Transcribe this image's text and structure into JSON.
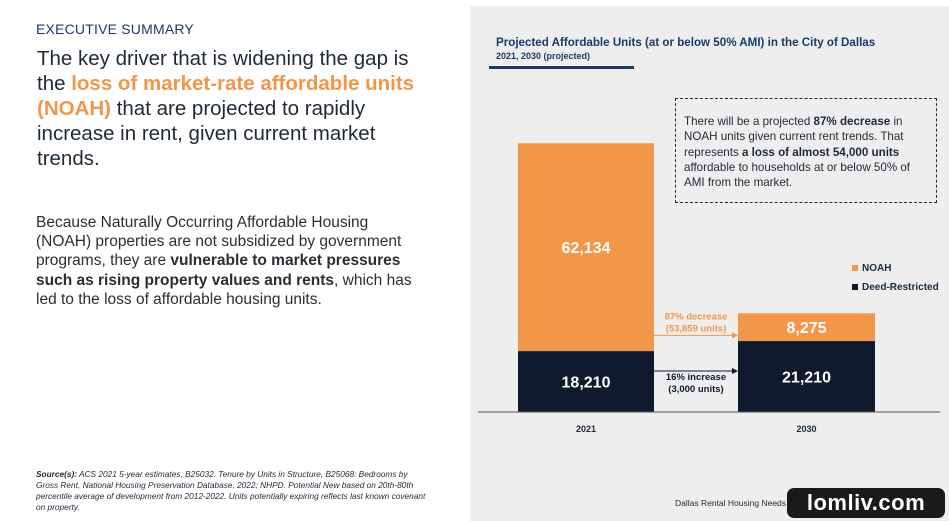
{
  "left": {
    "eyebrow": "EXECUTIVE SUMMARY",
    "headline_a": "The key driver that is widening the gap is the ",
    "headline_highlight": "loss of market-rate affordable units (NOAH)",
    "headline_b": " that are projected to rapidly increase in rent, given current market trends.",
    "body_a": "Because Naturally Occurring Affordable Housing (NOAH) properties are not subsidized by government programs, they are ",
    "body_bold": "vulnerable to market pressures such as rising property values and rents",
    "body_b": ", which has led to the loss of affordable housing units.",
    "source_label": "Source(s):",
    "source_text": " ACS 2021 5-year estimates, B25032. Tenure by Units in Structure, B25068: Bedrooms by Gross Rent, National Housing Preservation Database, 2022; NHPD. Potential New based on 20th-80th percentile average of development from 2012-2022. Units potentially expiring reflects last known covenant on property."
  },
  "chart_data": {
    "type": "bar",
    "stacked": true,
    "title": "Projected Affordable Units (at or below 50% AMI) in the City of Dallas",
    "subtitle": "2021, 2030 (projected)",
    "categories": [
      "2021",
      "2030"
    ],
    "series": [
      {
        "name": "Deed-Restricted",
        "values": [
          18210,
          21210
        ],
        "labels": [
          "18,210",
          "21,210"
        ]
      },
      {
        "name": "NOAH",
        "values": [
          62134,
          8275
        ],
        "labels": [
          "62,134",
          "8,275"
        ]
      }
    ],
    "legend_placement": "right",
    "grid": false,
    "annotations": {
      "noah_change": [
        "87% decrease",
        "(53,859 units)"
      ],
      "deed_change": [
        "16% increase",
        "(3,000 units)"
      ]
    },
    "callout": {
      "a": "There will be a projected ",
      "b1": "87% decrease",
      "c": " in NOAH units given current rent trends. That represents ",
      "b2": "a loss of almost 54,000 units",
      "d": " affordable to households at or below 50% of AMI from the market."
    }
  },
  "colors": {
    "noah": "#f2964a",
    "deed": "#0f1a2e",
    "title": "#1b3a6b",
    "panel": "#eeeeee"
  },
  "footer": "Dallas Rental Housing Needs Asse",
  "watermark": "lomliv.com"
}
